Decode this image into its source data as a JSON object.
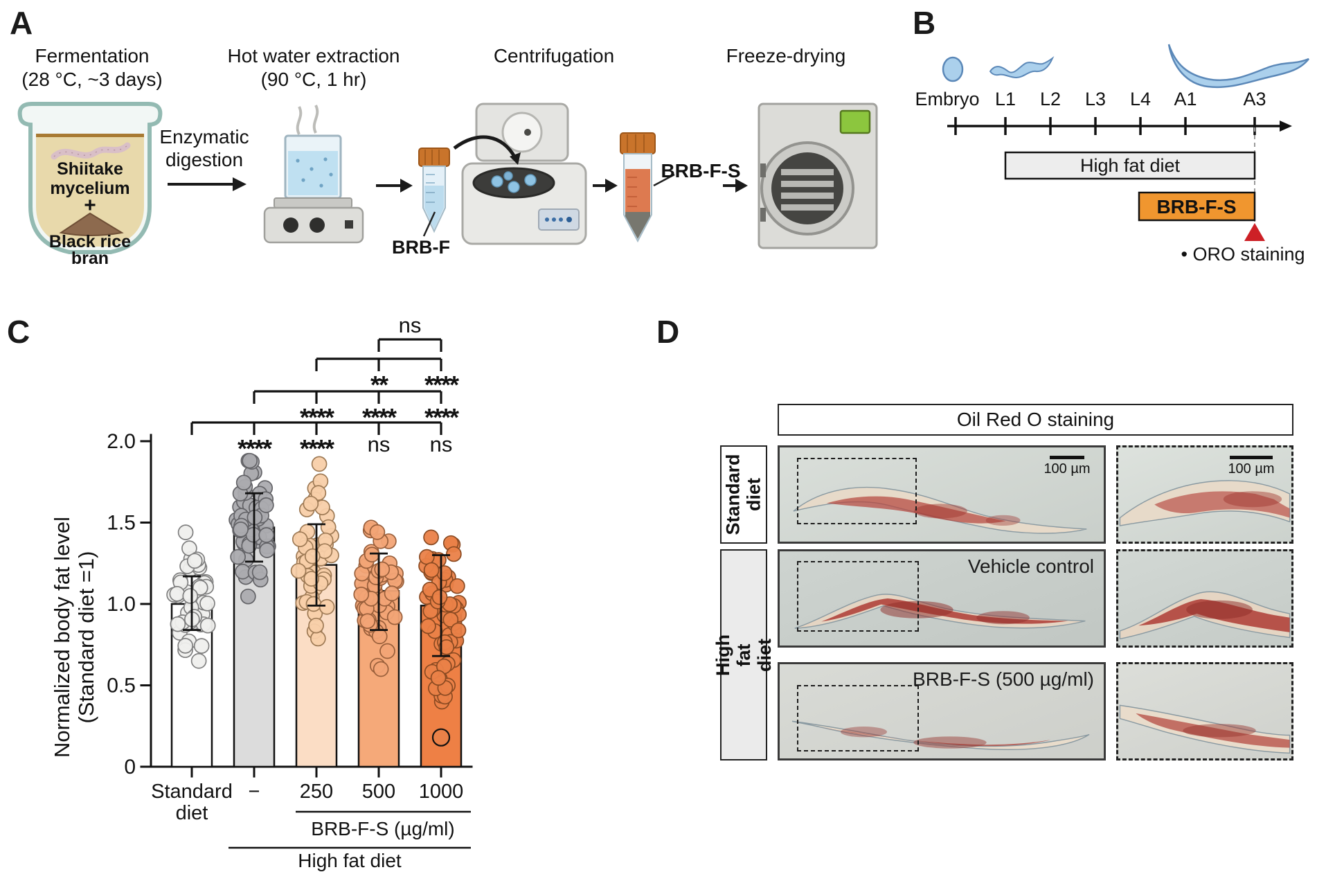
{
  "panel_labels": {
    "a": "A",
    "b": "B",
    "c": "C",
    "d": "D"
  },
  "panel_a": {
    "step1_title": "Fermentation",
    "step1_sub": "(28 °C, ~3 days)",
    "step2_title": "Hot water extraction",
    "step2_sub": "(90 °C, 1 hr)",
    "step3_title": "Centrifugation",
    "step4_title": "Freeze-drying",
    "arrow1_line1": "Enzymatic",
    "arrow1_line2": "digestion",
    "jar_line1": "Shiitake",
    "jar_line2": "mycelium",
    "jar_plus": "+",
    "jar_line3": "Black rice",
    "jar_line4": "bran",
    "tube1_label": "BRB-F",
    "tube2_label": "BRB-F-S"
  },
  "panel_b": {
    "stages": [
      "Embryo",
      "L1",
      "L2",
      "L3",
      "L4",
      "A1",
      "A3"
    ],
    "high_fat_diet_label": "High fat diet",
    "treatment_label": "BRB-F-S",
    "oro_label": "• ORO staining",
    "hfd_fill": "#ededed",
    "treatment_fill": "#f0962f",
    "marker_color": "#cd2026",
    "worm_fill": "#abd0ec",
    "worm_stroke": "#5b88b8"
  },
  "chart_data": {
    "type": "bar",
    "title": "",
    "ylabel_line1": "Normalized body fat level",
    "ylabel_line2": "(Standard diet =1)",
    "ylim": [
      0,
      2.0
    ],
    "yticks": [
      {
        "v": 0,
        "label": "0"
      },
      {
        "v": 0.5,
        "label": "0.5"
      },
      {
        "v": 1.0,
        "label": "1.0"
      },
      {
        "v": 1.5,
        "label": "1.5"
      },
      {
        "v": 2.0,
        "label": "2.0"
      }
    ],
    "categories": [
      "Standard\ndiet",
      "−",
      "250",
      "500",
      "1000"
    ],
    "values": [
      1.0,
      1.47,
      1.24,
      1.08,
      0.99
    ],
    "error_low": [
      0.84,
      1.26,
      0.99,
      0.84,
      0.68
    ],
    "error_high": [
      1.17,
      1.68,
      1.49,
      1.31,
      1.3
    ],
    "bar_fills": [
      "#ffffff",
      "#dcdcdc",
      "#fbddc5",
      "#f5a979",
      "#ee8045"
    ],
    "dot_fills": [
      "#efefed",
      "#ababaf",
      "#f8cfa9",
      "#f2a476",
      "#ea8148"
    ],
    "dot_strokes": [
      "#7f7f7f",
      "#636367",
      "#9e7a55",
      "#995f3b",
      "#8a4a22"
    ],
    "dots": [
      {
        "mean": 1.02,
        "sd": 0.18,
        "min": 0.65,
        "max": 1.45,
        "n": 46,
        "seed": 11
      },
      {
        "mean": 1.46,
        "sd": 0.19,
        "min": 0.88,
        "max": 1.88,
        "n": 52,
        "seed": 23
      },
      {
        "mean": 1.25,
        "sd": 0.23,
        "min": 0.74,
        "max": 1.86,
        "n": 50,
        "seed": 37
      },
      {
        "mean": 1.07,
        "sd": 0.21,
        "min": 0.6,
        "max": 1.52,
        "n": 55,
        "seed": 53
      },
      {
        "mean": 1.0,
        "sd": 0.27,
        "min": 0.4,
        "max": 1.63,
        "n": 56,
        "seed": 71
      }
    ],
    "outlier": {
      "group": 4,
      "value": 0.18
    },
    "significance_brackets": [
      {
        "from": 0,
        "to": 4,
        "ticks": [
          1,
          2,
          3
        ],
        "position": "below",
        "labels": [
          {
            "at": 1,
            "text": "****"
          },
          {
            "at": 2,
            "text": "****"
          },
          {
            "at": 3,
            "text": "ns"
          },
          {
            "at": 4,
            "text": "ns"
          }
        ]
      },
      {
        "from": 1,
        "to": 4,
        "ticks": [
          2,
          3
        ],
        "position": "below",
        "labels": [
          {
            "at": 2,
            "text": "****"
          },
          {
            "at": 3,
            "text": "****"
          },
          {
            "at": 4,
            "text": "****"
          }
        ]
      },
      {
        "from": 2,
        "to": 4,
        "ticks": [
          3
        ],
        "position": "below",
        "labels": [
          {
            "at": 3,
            "text": "**"
          },
          {
            "at": 4,
            "text": "****"
          }
        ]
      },
      {
        "from": 3,
        "to": 4,
        "ticks": [],
        "position": "above",
        "labels": [
          {
            "at": "mid",
            "text": "ns"
          }
        ]
      }
    ],
    "group_bracket1_label": "BRB-F-S (µg/ml)",
    "group_bracket2_label": "High fat diet"
  },
  "panel_d": {
    "header": "Oil Red O staining",
    "row_label_1": "Standard\ndiet",
    "row_label_2": "High fat diet",
    "caption_row2": "Vehicle control",
    "caption_row3": "BRB-F-S (500 µg/ml)",
    "scale_label": "100 µm"
  }
}
